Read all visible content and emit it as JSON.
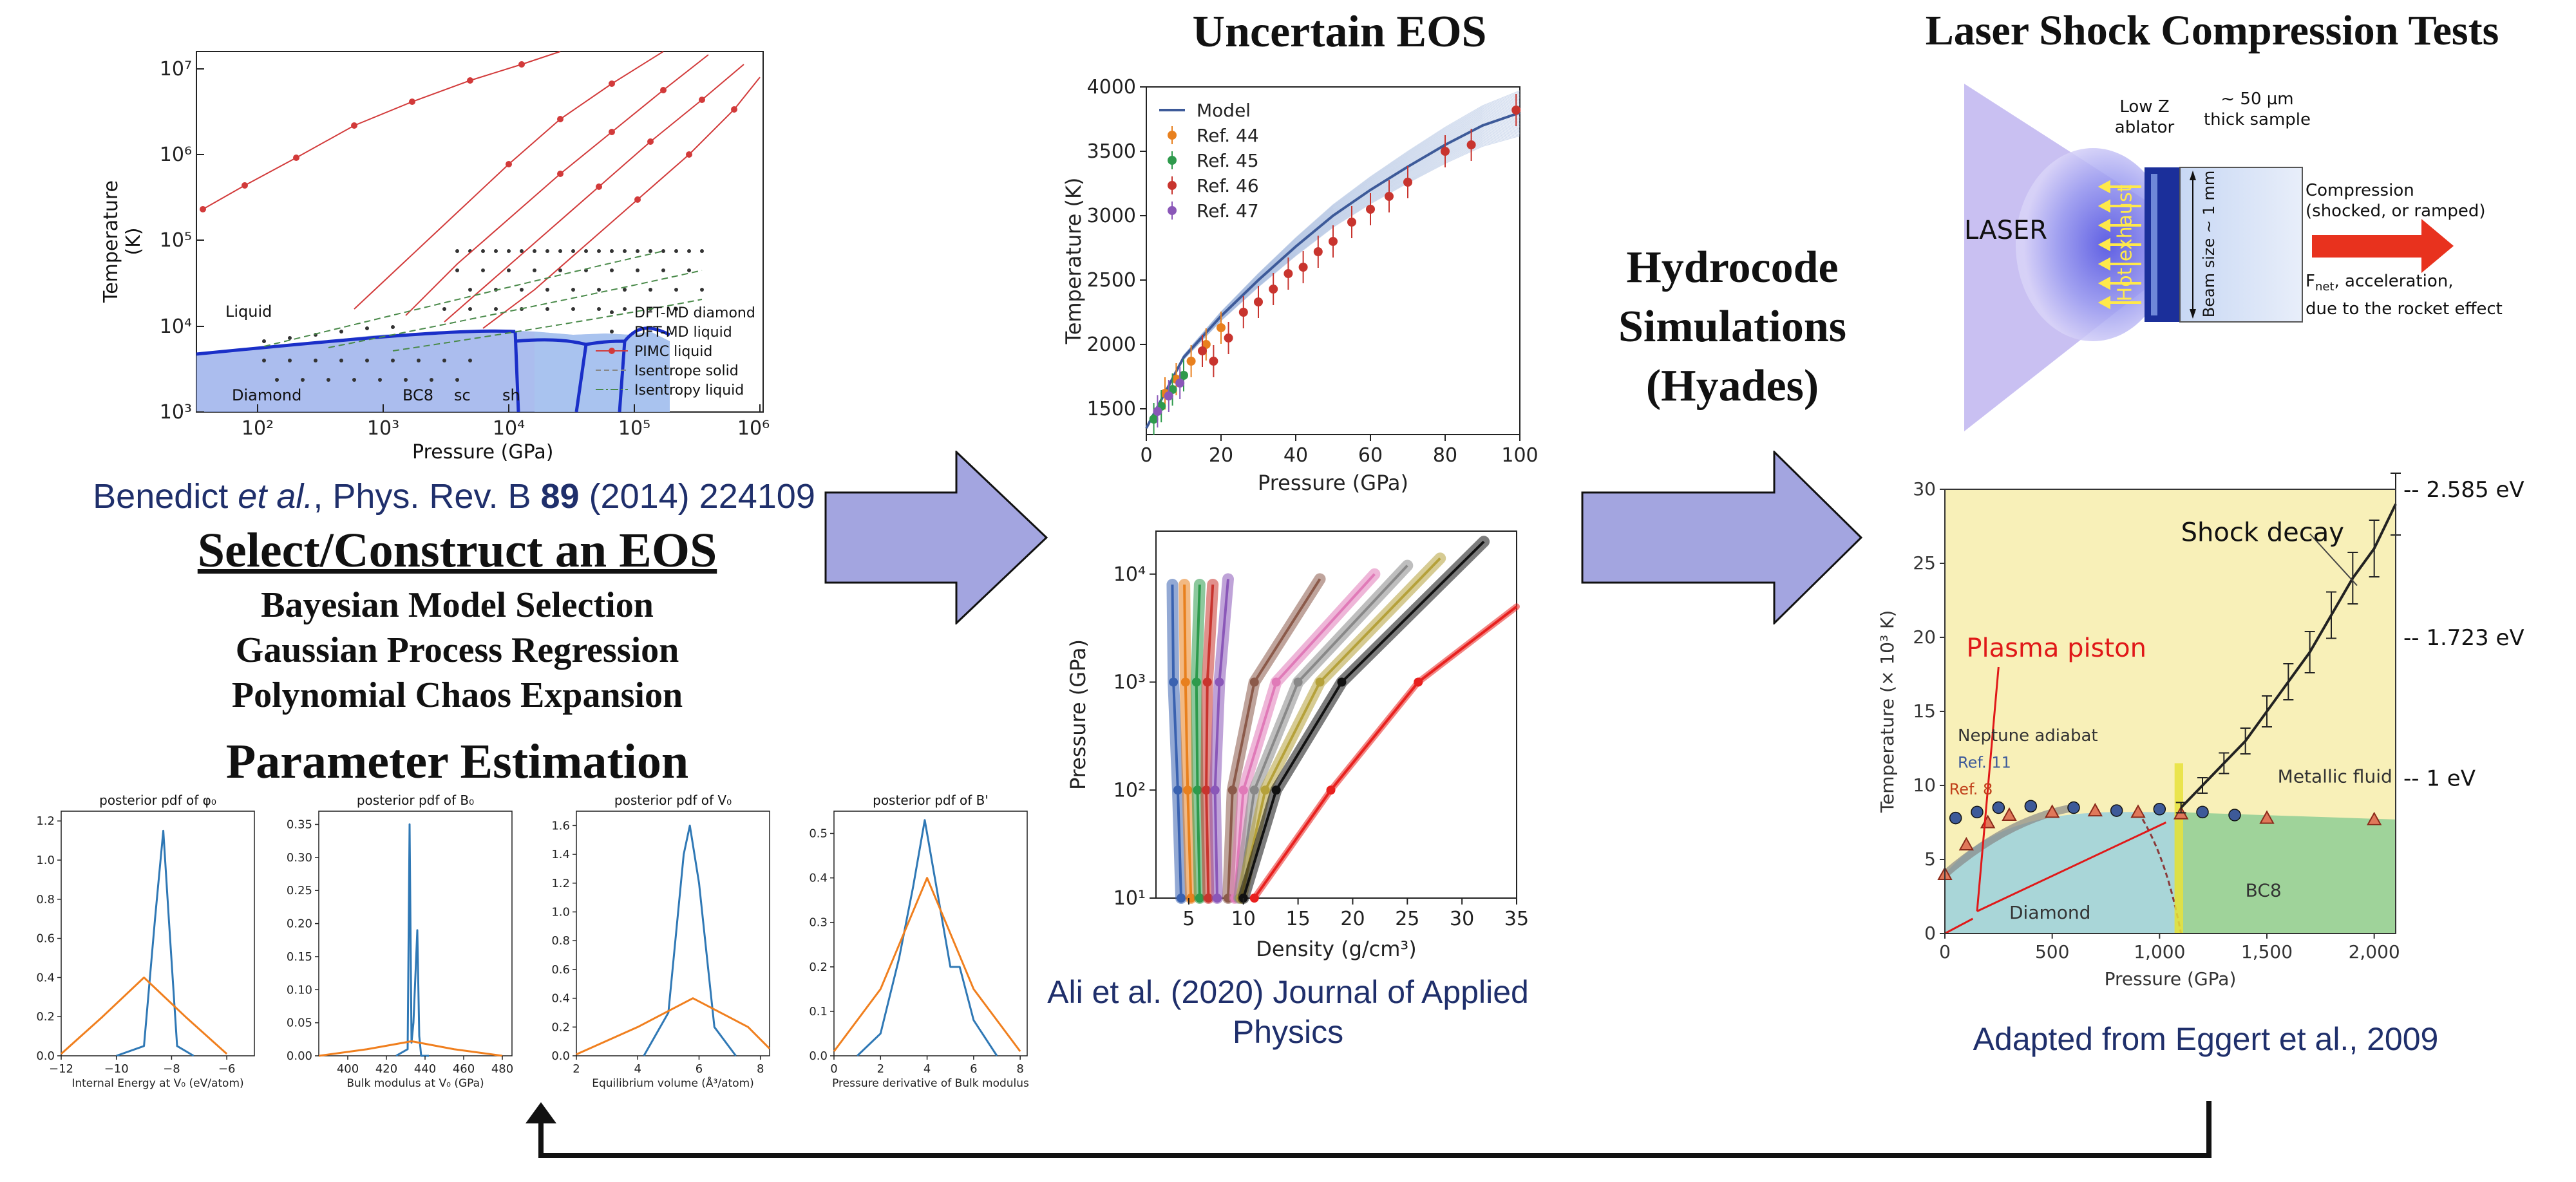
{
  "sections": {
    "select_eos": {
      "citation": {
        "authors_pre": "Benedict ",
        "etal": "et al.",
        "journal": ", Phys. Rev. B ",
        "volume": "89",
        "rest": " (2014) 224109"
      },
      "title": "Select/Construct an EOS",
      "methods": [
        "Bayesian Model Selection",
        "Gaussian Process Regression",
        "Polynomial Chaos Expansion"
      ],
      "param_title": "Parameter Estimation"
    },
    "uncertain_eos": {
      "title": "Uncertain EOS",
      "citation_line1": "Ali et al. (2020) Journal of Applied",
      "citation_line2": "Physics"
    },
    "hydrocode": {
      "line1": "Hydrocode",
      "line2": "Simulations",
      "line3": "(Hyades)"
    },
    "laser": {
      "title": "Laser Shock Compression Tests",
      "labels": {
        "laser": "LASER",
        "low_z_1": "Low Z",
        "low_z_2": "ablator",
        "thick_1": "~ 50 µm",
        "thick_2": "thick sample",
        "hot_exhaust": "Hot exhaust",
        "beam_size": "Beam size ~ 1 mm",
        "compression_1": "Compression",
        "compression_2": "(shocked, or ramped)",
        "fnet_pre": "F",
        "fnet_sub": "net",
        "fnet_post": ",  acceleration,",
        "rocket": "due to the rocket effect"
      },
      "citation": "Adapted from Eggert et al., 2009"
    }
  },
  "chart_data": [
    {
      "type": "line",
      "name": "phase-diagram",
      "xlabel": "Pressure (GPa)",
      "ylabel": "Temperature (K)",
      "xscale": "log",
      "yscale": "log",
      "xlim": [
        30,
        1000000
      ],
      "ylim": [
        1000,
        15000000
      ],
      "x_ticks": [
        "10²",
        "10³",
        "10⁴",
        "10⁵",
        "10⁶"
      ],
      "y_ticks": [
        "10³",
        "10⁴",
        "10⁵",
        "10⁶",
        "10⁷"
      ],
      "region_labels": [
        "Liquid",
        "Diamond",
        "BC8",
        "sc",
        "sh"
      ],
      "legend": [
        "DFT-MD diamond",
        "DFT-MD liquid",
        "PIMC liquid",
        "Isentrope solid",
        "Isentropy liquid"
      ],
      "legend_position": "lower-right"
    },
    {
      "type": "line",
      "name": "uncertain-eos-temperature",
      "xlabel": "Pressure (GPa)",
      "ylabel": "Temperature (K)",
      "xlim": [
        0,
        100
      ],
      "ylim": [
        1300,
        4000
      ],
      "x_ticks": [
        "0",
        "20",
        "40",
        "60",
        "80",
        "100"
      ],
      "y_ticks": [
        "1500",
        "2000",
        "2500",
        "3000",
        "3500",
        "4000"
      ],
      "legend": [
        "Model",
        "Ref. 44",
        "Ref. 45",
        "Ref. 46",
        "Ref. 47"
      ],
      "legend_position": "top-left",
      "series": [
        {
          "name": "Model",
          "x": [
            0,
            10,
            20,
            30,
            40,
            50,
            60,
            70,
            80,
            90,
            100
          ],
          "y": [
            1350,
            1900,
            2220,
            2500,
            2760,
            3000,
            3200,
            3380,
            3550,
            3700,
            3800
          ]
        },
        {
          "name": "Ref. 44",
          "x": [
            5,
            8,
            12,
            16,
            20
          ],
          "y": [
            1620,
            1730,
            1870,
            2000,
            2130
          ]
        },
        {
          "name": "Ref. 45",
          "x": [
            2,
            4,
            7,
            10
          ],
          "y": [
            1420,
            1520,
            1650,
            1760
          ]
        },
        {
          "name": "Ref. 46",
          "x": [
            15,
            18,
            22,
            26,
            30,
            34,
            38,
            42,
            46,
            50,
            55,
            60,
            65,
            70,
            80,
            87,
            99
          ],
          "y": [
            1950,
            1870,
            2050,
            2250,
            2330,
            2430,
            2550,
            2600,
            2720,
            2800,
            2950,
            3050,
            3150,
            3260,
            3500,
            3550,
            3820
          ]
        },
        {
          "name": "Ref. 47",
          "x": [
            3,
            6,
            9
          ],
          "y": [
            1480,
            1600,
            1700
          ]
        }
      ]
    },
    {
      "type": "line",
      "name": "density-pressure",
      "xlabel": "Density (g/cm³)",
      "ylabel": "Pressure (GPa)",
      "xlim": [
        2,
        35
      ],
      "yscale": "log",
      "ylim": [
        10,
        25000
      ],
      "x_ticks": [
        "5",
        "10",
        "15",
        "20",
        "25",
        "30",
        "35"
      ],
      "y_ticks": [
        "10¹",
        "10²",
        "10³",
        "10⁴"
      ],
      "series": [
        {
          "name": "blue",
          "color": "#3a62b0",
          "x": [
            4.3,
            4.0,
            3.6,
            3.5
          ],
          "y": [
            10,
            100,
            1000,
            8000
          ]
        },
        {
          "name": "orange",
          "color": "#e8801e",
          "x": [
            5.2,
            4.9,
            4.7,
            4.6
          ],
          "y": [
            10,
            100,
            1000,
            8000
          ]
        },
        {
          "name": "green",
          "color": "#2e9a4c",
          "x": [
            6.0,
            5.8,
            5.7,
            6.0
          ],
          "y": [
            10,
            100,
            1000,
            8000
          ]
        },
        {
          "name": "red",
          "color": "#c8342e",
          "x": [
            6.8,
            6.6,
            6.7,
            7.2
          ],
          "y": [
            10,
            100,
            1000,
            8000
          ]
        },
        {
          "name": "purple",
          "color": "#8a57b8",
          "x": [
            7.6,
            7.4,
            7.8,
            8.6
          ],
          "y": [
            10,
            100,
            1000,
            9000
          ]
        },
        {
          "name": "brown",
          "color": "#8b5a4a",
          "x": [
            8.6,
            9.0,
            11,
            17
          ],
          "y": [
            10,
            100,
            1000,
            9000
          ]
        },
        {
          "name": "pink",
          "color": "#e07ab8",
          "x": [
            9.2,
            10,
            13,
            22
          ],
          "y": [
            10,
            100,
            1000,
            10000
          ]
        },
        {
          "name": "gray",
          "color": "#888888",
          "x": [
            9.6,
            11,
            15,
            25
          ],
          "y": [
            10,
            100,
            1000,
            12000
          ]
        },
        {
          "name": "olive",
          "color": "#b5a13a",
          "x": [
            9.8,
            12,
            17,
            28
          ],
          "y": [
            10,
            100,
            1000,
            14000
          ]
        },
        {
          "name": "black",
          "color": "#111111",
          "x": [
            10,
            13,
            19,
            32
          ],
          "y": [
            10,
            100,
            1000,
            20000
          ]
        },
        {
          "name": "red-thick",
          "color": "#e8201e",
          "x": [
            11,
            18,
            26,
            35
          ],
          "y": [
            10,
            100,
            1000,
            5000
          ]
        }
      ]
    },
    {
      "type": "line",
      "name": "phase-path",
      "xlabel": "Pressure (GPa)",
      "ylabel": "Temperature (× 10³ K)",
      "xlim": [
        0,
        2100
      ],
      "ylim": [
        0,
        30
      ],
      "x_ticks": [
        "0",
        "500",
        "1,000",
        "1,500",
        "2,000"
      ],
      "y_ticks": [
        "0",
        "5",
        "10",
        "15",
        "20",
        "25",
        "30"
      ],
      "annotations": [
        "Shock decay",
        "Plasma piston",
        "Neptune adiabat",
        "Ref. 11",
        "Ref. 8",
        "Metallic fluid",
        "Diamond",
        "BC8"
      ],
      "right_labels": [
        "-- 2.585 eV",
        "-- 1.723 eV",
        "-- 1 eV"
      ],
      "series": [
        {
          "name": "shock",
          "x": [
            1100,
            1200,
            1300,
            1400,
            1500,
            1600,
            1700,
            1800,
            1900,
            2000,
            2100
          ],
          "y": [
            8.5,
            10,
            11.5,
            13,
            15,
            17,
            19,
            21.5,
            24,
            26,
            29
          ]
        },
        {
          "name": "Ref. 11",
          "x": [
            50,
            150,
            250,
            400,
            600,
            800,
            1000,
            1200,
            1350
          ],
          "y": [
            7.8,
            8.2,
            8.5,
            8.6,
            8.5,
            8.3,
            8.4,
            8.2,
            8
          ]
        },
        {
          "name": "Ref. 8",
          "x": [
            0,
            100,
            200,
            300,
            500,
            700,
            900,
            1100,
            1500,
            2000
          ],
          "y": [
            4,
            6,
            7.5,
            8,
            8.2,
            8.3,
            8.2,
            8.1,
            7.8,
            7.7
          ]
        }
      ]
    },
    {
      "type": "line",
      "name": "posterior-phi0",
      "title": "posterior pdf of φ₀",
      "xlabel": "Internal Energy at V₀ (eV/atom)",
      "xlim": [
        -12,
        -5
      ],
      "ylim": [
        0,
        1.25
      ],
      "x_ticks": [
        "−12",
        "−10",
        "−8",
        "−6"
      ],
      "y_ticks": [
        "0.0",
        "0.2",
        "0.4",
        "0.6",
        "0.8",
        "1.0",
        "1.2"
      ],
      "series": [
        {
          "name": "blue",
          "x": [
            -10,
            -9,
            -8.6,
            -8.3,
            -8.1,
            -7.8,
            -7.2
          ],
          "y": [
            0,
            0.05,
            0.7,
            1.15,
            0.7,
            0.05,
            0
          ]
        },
        {
          "name": "orange",
          "x": [
            -12,
            -10.5,
            -9,
            -7.5,
            -6
          ],
          "y": [
            0.01,
            0.2,
            0.4,
            0.2,
            0.01
          ]
        }
      ]
    },
    {
      "type": "line",
      "name": "posterior-B0",
      "title": "posterior pdf of B₀",
      "xlabel": "Bulk modulus at V₀ (GPa)",
      "xlim": [
        385,
        485
      ],
      "ylim": [
        0,
        0.37
      ],
      "x_ticks": [
        "400",
        "420",
        "440",
        "460",
        "480"
      ],
      "y_ticks": [
        "0.00",
        "0.05",
        "0.10",
        "0.15",
        "0.20",
        "0.25",
        "0.30",
        "0.35"
      ],
      "series": [
        {
          "name": "blue",
          "x": [
            425,
            431,
            432,
            433,
            434,
            436,
            437,
            438,
            442
          ],
          "y": [
            0,
            0.01,
            0.35,
            0.02,
            0.05,
            0.19,
            0.03,
            0,
            0
          ]
        },
        {
          "name": "orange",
          "x": [
            385,
            410,
            433,
            455,
            480
          ],
          "y": [
            0,
            0.01,
            0.022,
            0.01,
            0
          ]
        }
      ]
    },
    {
      "type": "line",
      "name": "posterior-V0",
      "title": "posterior pdf of V₀",
      "xlabel": "Equilibrium volume (Å³/atom)",
      "xlim": [
        2,
        8.3
      ],
      "ylim": [
        0,
        1.7
      ],
      "x_ticks": [
        "2",
        "4",
        "6",
        "8"
      ],
      "y_ticks": [
        "0.0",
        "0.2",
        "0.4",
        "0.6",
        "0.8",
        "1.0",
        "1.2",
        "1.4",
        "1.6"
      ],
      "series": [
        {
          "name": "blue",
          "x": [
            4.2,
            5.0,
            5.5,
            5.7,
            6.0,
            6.5,
            7.2
          ],
          "y": [
            0,
            0.3,
            1.4,
            1.6,
            1.2,
            0.2,
            0
          ]
        },
        {
          "name": "orange",
          "x": [
            2,
            4,
            5.8,
            7.6,
            8.3
          ],
          "y": [
            0.01,
            0.2,
            0.4,
            0.2,
            0.05
          ]
        }
      ]
    },
    {
      "type": "line",
      "name": "posterior-Bprime",
      "title": "posterior pdf of B'",
      "xlabel": "Pressure derivative of Bulk modulus",
      "xlim": [
        0,
        8.3
      ],
      "ylim": [
        0,
        0.55
      ],
      "x_ticks": [
        "0",
        "2",
        "4",
        "6",
        "8"
      ],
      "y_ticks": [
        "0.0",
        "0.1",
        "0.2",
        "0.3",
        "0.4",
        "0.5"
      ],
      "series": [
        {
          "name": "blue",
          "x": [
            1,
            2,
            2.8,
            3.4,
            3.9,
            4.5,
            5,
            5.4,
            6,
            7
          ],
          "y": [
            0,
            0.05,
            0.22,
            0.38,
            0.53,
            0.35,
            0.2,
            0.2,
            0.08,
            0
          ]
        },
        {
          "name": "orange",
          "x": [
            0,
            2,
            4,
            6,
            8
          ],
          "y": [
            0.01,
            0.15,
            0.4,
            0.15,
            0.01
          ]
        }
      ]
    }
  ]
}
